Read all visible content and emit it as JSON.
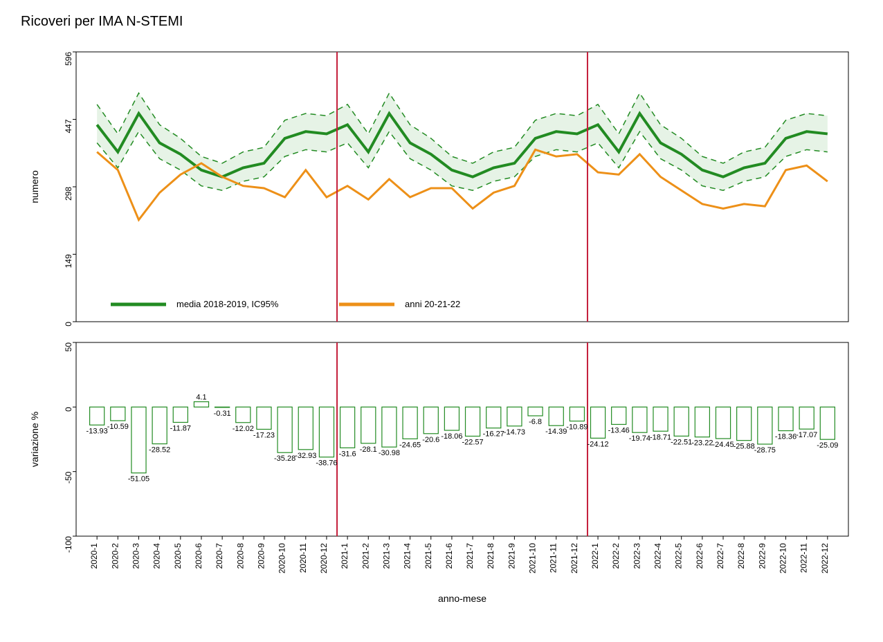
{
  "title": "Ricoveri per IMA N-STEMI",
  "x_axis_label": "anno-mese",
  "categories": [
    "2020-1",
    "2020-2",
    "2020-3",
    "2020-4",
    "2020-5",
    "2020-6",
    "2020-7",
    "2020-8",
    "2020-9",
    "2020-10",
    "2020-11",
    "2020-12",
    "2021-1",
    "2021-2",
    "2021-3",
    "2021-4",
    "2021-5",
    "2021-6",
    "2021-7",
    "2021-8",
    "2021-9",
    "2021-10",
    "2021-11",
    "2021-12",
    "2022-1",
    "2022-2",
    "2022-3",
    "2022-4",
    "2022-5",
    "2022-6",
    "2022-7",
    "2022-8",
    "2022-9",
    "2022-10",
    "2022-11",
    "2022-12"
  ],
  "top_chart": {
    "y_label": "numero",
    "y_ticks": [
      0,
      149,
      298,
      447,
      596
    ],
    "ylim": [
      0,
      596
    ],
    "green_mean": [
      435,
      375,
      460,
      395,
      370,
      335,
      320,
      340,
      350,
      405,
      420,
      415,
      435,
      375,
      460,
      395,
      370,
      335,
      320,
      340,
      350,
      405,
      420,
      415,
      435,
      375,
      460,
      395,
      370,
      335,
      320,
      340,
      350,
      405,
      420,
      415
    ],
    "green_upper": [
      480,
      415,
      505,
      435,
      405,
      365,
      350,
      375,
      385,
      445,
      460,
      455,
      480,
      415,
      505,
      435,
      405,
      365,
      350,
      375,
      385,
      445,
      460,
      455,
      480,
      415,
      505,
      435,
      405,
      365,
      350,
      375,
      385,
      445,
      460,
      455
    ],
    "green_lower": [
      395,
      340,
      420,
      360,
      335,
      300,
      290,
      310,
      320,
      365,
      380,
      375,
      395,
      340,
      420,
      360,
      335,
      300,
      290,
      310,
      320,
      365,
      380,
      375,
      395,
      340,
      420,
      360,
      335,
      300,
      290,
      310,
      320,
      365,
      380,
      375
    ],
    "orange": [
      375,
      335,
      225,
      285,
      325,
      350,
      320,
      300,
      295,
      275,
      335,
      275,
      300,
      270,
      315,
      275,
      295,
      295,
      250,
      285,
      300,
      380,
      365,
      370,
      330,
      325,
      370,
      320,
      290,
      260,
      250,
      260,
      255,
      335,
      345,
      310
    ],
    "vlines": [
      12,
      24
    ],
    "colors": {
      "green_line": "#228B22",
      "green_fill": "#e6f3e6",
      "orange_line": "#ed9018",
      "vline": "#c41e3a",
      "border": "#000000"
    },
    "legend": [
      {
        "color": "#228B22",
        "label": "media 2018-2019, IC95%"
      },
      {
        "color": "#ed9018",
        "label": "anni 20-21-22"
      }
    ]
  },
  "bottom_chart": {
    "y_label": "variazione %",
    "y_ticks": [
      -100,
      -50,
      0,
      50
    ],
    "ylim": [
      -100,
      50
    ],
    "values": [
      -13.93,
      -10.59,
      -51.05,
      -28.52,
      -11.87,
      4.1,
      -0.31,
      -12.02,
      -17.23,
      -35.28,
      -32.93,
      -38.76,
      -31.6,
      -28.1,
      -30.98,
      -24.65,
      -20.6,
      -18.06,
      -22.57,
      -16.27,
      -14.73,
      -6.8,
      -14.39,
      -10.89,
      -24.12,
      -13.46,
      -19.74,
      -18.71,
      -22.51,
      -23.22,
      -24.45,
      -25.88,
      -28.75,
      -18.36,
      -17.07,
      -25.09
    ],
    "bar_color": "#ffffff",
    "bar_stroke": "#228B22",
    "vlines": [
      12,
      24
    ]
  }
}
